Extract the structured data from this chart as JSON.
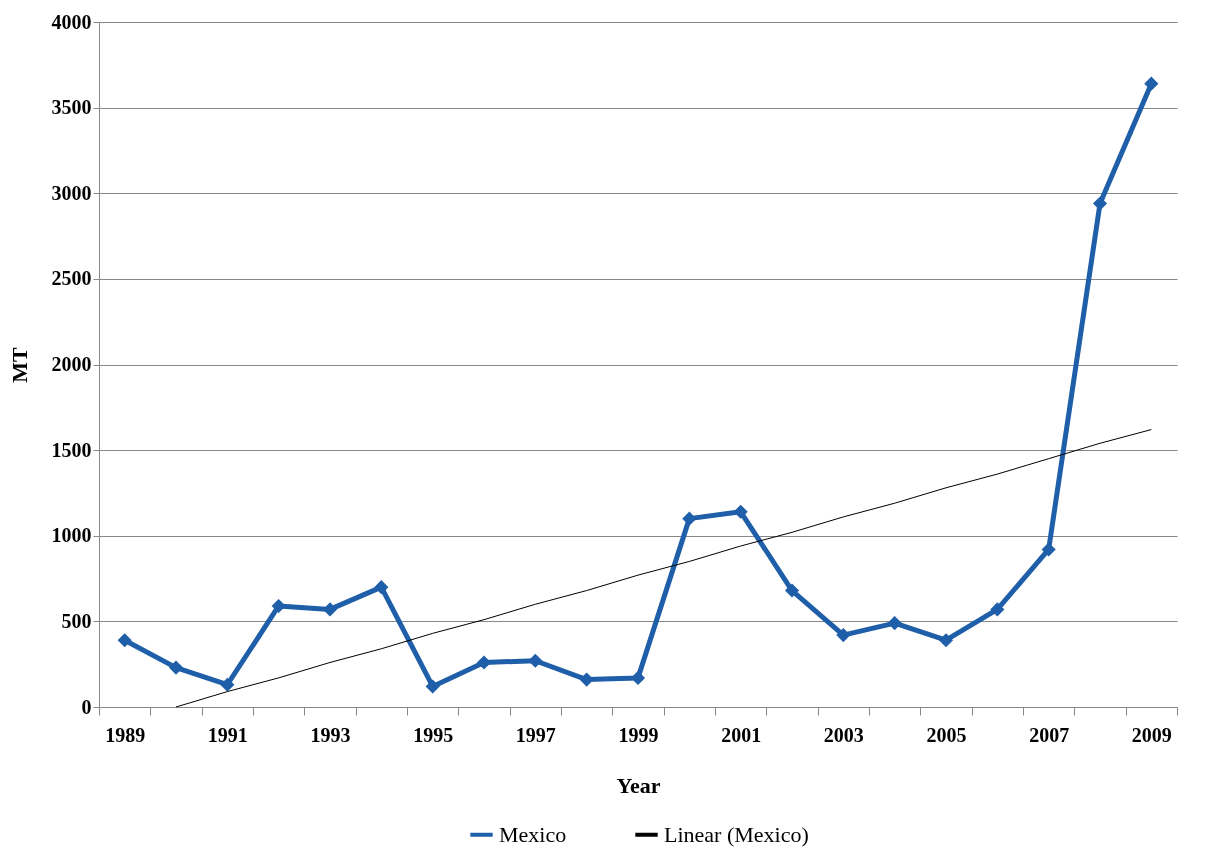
{
  "chart_data": {
    "type": "line",
    "xlabel": "Year",
    "ylabel": "MT",
    "categories": [
      "1989",
      null,
      "1991",
      null,
      "1993",
      null,
      "1995",
      null,
      "1997",
      null,
      "1999",
      null,
      "2001",
      null,
      "2003",
      null,
      "2005",
      null,
      "2007",
      null,
      "2009"
    ],
    "series": [
      {
        "name": "Mexico",
        "color": "#1f5ea8",
        "values": [
          390,
          230,
          130,
          590,
          570,
          700,
          120,
          260,
          270,
          160,
          170,
          1100,
          1140,
          680,
          420,
          490,
          390,
          570,
          920,
          2940,
          3640
        ]
      },
      {
        "name": "Linear (Mexico)",
        "type": "line",
        "color": "#000000",
        "marker": "none",
        "values": [
          null,
          0,
          90,
          170,
          260,
          340,
          430,
          510,
          600,
          680,
          770,
          850,
          940,
          1020,
          1110,
          1190,
          1280,
          1360,
          1450,
          1540,
          1620
        ]
      }
    ],
    "ylim": [
      0,
      4000
    ],
    "yticks": [
      0,
      500,
      1000,
      1500,
      2000,
      2500,
      3000,
      3500,
      4000
    ],
    "grid": "y",
    "legend": "bottom",
    "marker": "diamond"
  }
}
